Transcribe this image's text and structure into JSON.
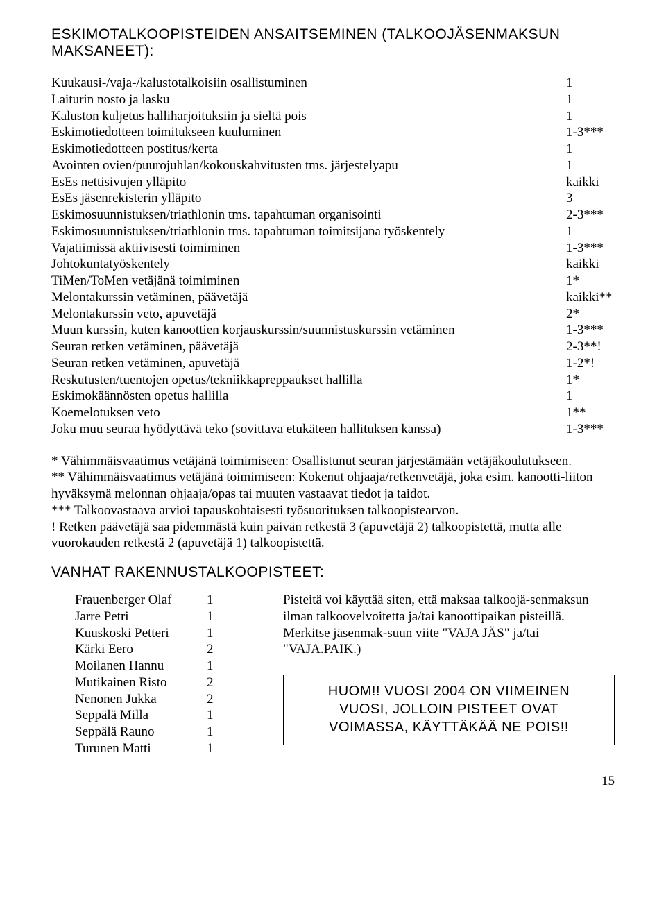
{
  "heading1": "ESKIMOTALKOOPISTEIDEN ANSAITSEMINEN (TALKOOJÄSENMAKSUN MAKSANEET):",
  "points": [
    {
      "label": "Kuukausi-/vaja-/kalustotalkoisiin osallistuminen",
      "value": "1"
    },
    {
      "label": "Laiturin nosto ja lasku",
      "value": "1"
    },
    {
      "label": "Kaluston kuljetus halliharjoituksiin ja sieltä pois",
      "value": "1"
    },
    {
      "label": "Eskimotiedotteen toimitukseen kuuluminen",
      "value": "1-3***"
    },
    {
      "label": "Eskimotiedotteen postitus/kerta",
      "value": "1"
    },
    {
      "label": "Avointen ovien/puurojuhlan/kokouskahvitusten tms. järjestelyapu",
      "value": "1"
    },
    {
      "label": "EsEs nettisivujen ylläpito",
      "value": "kaikki"
    },
    {
      "label": "EsEs jäsenrekisterin ylläpito",
      "value": "3"
    },
    {
      "label": "Eskimosuunnistuksen/triathlonin tms. tapahtuman organisointi",
      "value": "2-3***"
    },
    {
      "label": "Eskimosuunnistuksen/triathlonin tms. tapahtuman toimitsijana työskentely",
      "value": "1"
    },
    {
      "label": "Vajatiimissä aktiivisesti toimiminen",
      "value": "1-3***"
    },
    {
      "label": "Johtokuntatyöskentely",
      "value": "kaikki"
    },
    {
      "label": "TiMen/ToMen vetäjänä toimiminen",
      "value": "1*"
    },
    {
      "label": "Melontakurssin vetäminen, päävetäjä",
      "value": "kaikki**"
    },
    {
      "label": "Melontakurssin veto, apuvetäjä",
      "value": "2*"
    },
    {
      "label": "Muun kurssin, kuten kanoottien korjauskurssin/suunnistuskurssin vetäminen",
      "value": "1-3***"
    },
    {
      "label": "Seuran retken vetäminen, päävetäjä",
      "value": "2-3**!"
    },
    {
      "label": "Seuran retken vetäminen, apuvetäjä",
      "value": "1-2*!"
    },
    {
      "label": "Reskutusten/tuentojen opetus/tekniikkapreppaukset hallilla",
      "value": "1*"
    },
    {
      "label": "Eskimokäännösten opetus hallilla",
      "value": "1"
    },
    {
      "label": "Koemelotuksen veto",
      "value": "1**"
    },
    {
      "label": "Joku muu seuraa hyödyttävä teko (sovittava etukäteen hallituksen kanssa)",
      "value": "1-3***"
    }
  ],
  "notes": {
    "n1": "* Vähimmäisvaatimus vetäjänä toimimiseen: Osallistunut seuran järjestämään vetäjäkoulutukseen.",
    "n2": "** Vähimmäisvaatimus vetäjänä toimimiseen: Kokenut ohjaaja/retkenvetäjä, joka esim. kanootti-liiton hyväksymä melonnan ohjaaja/opas tai muuten vastaavat tiedot ja taidot.",
    "n3": "*** Talkoovastaava arvioi tapauskohtaisesti työsuorituksen talkoopistearvon.",
    "n4": "! Retken päävetäjä saa pidemmästä kuin päivän retkestä 3 (apuvetäjä 2) talkoopistettä, mutta alle vuorokauden retkestä 2 (apuvetäjä 1) talkoopistettä."
  },
  "heading2": "VANHAT RAKENNUSTALKOOPISTEET:",
  "names": [
    {
      "name": "Frauenberger Olaf",
      "pts": "1"
    },
    {
      "name": "Jarre Petri",
      "pts": "1"
    },
    {
      "name": "Kuuskoski Petteri",
      "pts": "1"
    },
    {
      "name": "Kärki Eero",
      "pts": "2"
    },
    {
      "name": "Moilanen Hannu",
      "pts": "1"
    },
    {
      "name": "Mutikainen Risto",
      "pts": "2"
    },
    {
      "name": "Nenonen Jukka",
      "pts": "2"
    },
    {
      "name": "Seppälä Milla",
      "pts": "1"
    },
    {
      "name": "Seppälä Rauno",
      "pts": "1"
    },
    {
      "name": "Turunen Matti",
      "pts": "1"
    }
  ],
  "rightcol": "Pisteitä voi käyttää siten, että maksaa talkoojä-senmaksun ilman talkoovelvoitetta ja/tai kanoottipaikan pisteillä. Merkitse jäsenmak-suun viite \"VAJA JÄS\" ja/tai \"VAJA.PAIK.)",
  "huom": {
    "l1": "HUOM!! VUOSI 2004 ON VIIMEINEN",
    "l2": "VUOSI, JOLLOIN PISTEET OVAT",
    "l3": "VOIMASSA, KÄYTTÄKÄÄ NE POIS!!"
  },
  "pagenum": "15"
}
